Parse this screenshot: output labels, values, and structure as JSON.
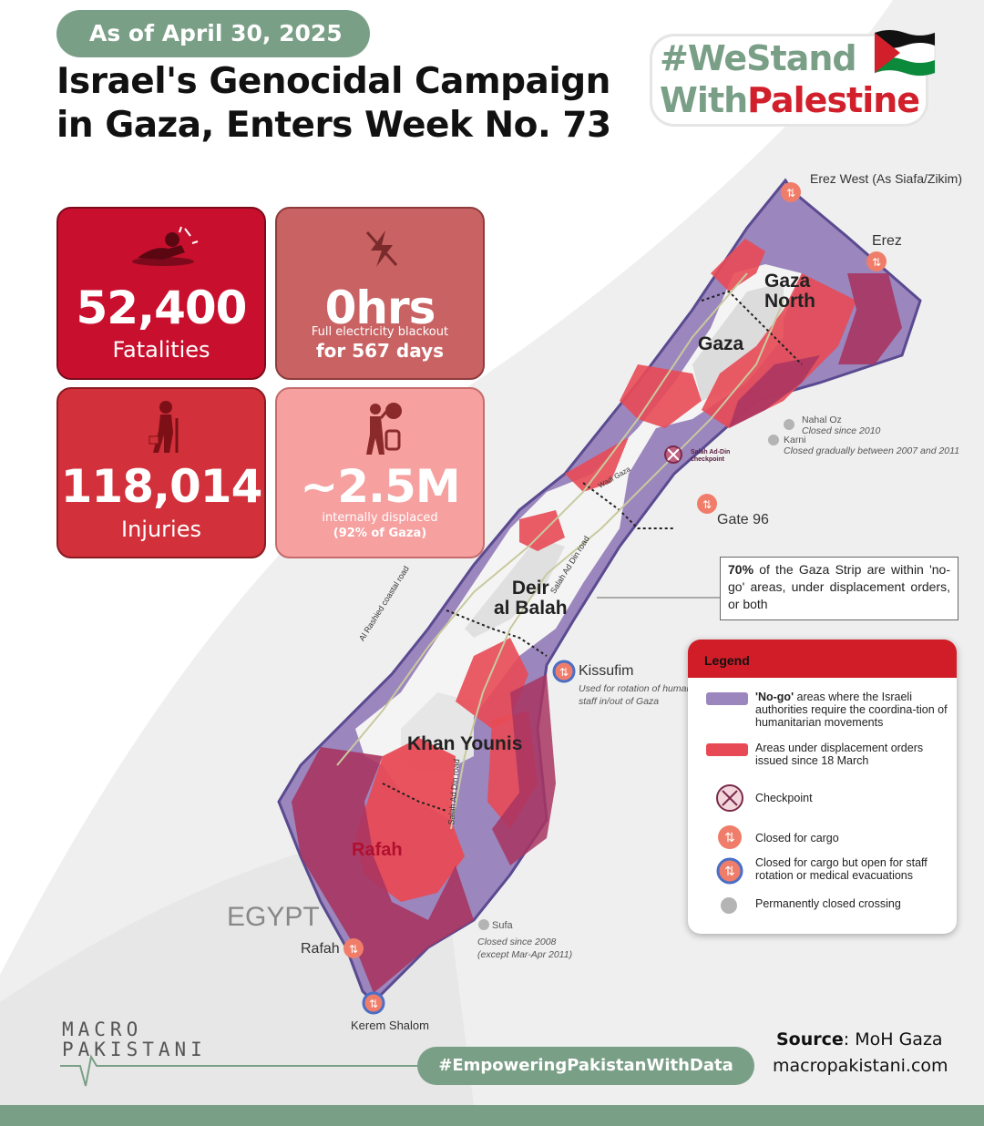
{
  "header": {
    "date_label": "As of April 30, 2025",
    "title_line1": "Israel's Genocidal Campaign",
    "title_line2": "in Gaza, Enters Week No. 73",
    "hashtag_line1": "#WeStand",
    "hashtag_line2_a": "With",
    "hashtag_line2_b": "Palestine"
  },
  "stats": {
    "fatalities": {
      "value": "52,400",
      "label": "Fatalities"
    },
    "electricity": {
      "value": "0hrs",
      "sub": "Full electricity blackout",
      "detail": "for 567 days"
    },
    "injuries": {
      "value": "118,014",
      "label": "Injuries"
    },
    "displaced": {
      "value": "~2.5M",
      "sub": "internally displaced",
      "detail": "(92% of Gaza)"
    }
  },
  "map": {
    "places": {
      "gaza_north_1": "Gaza",
      "gaza_north_2": "North",
      "gaza": "Gaza",
      "deir_1": "Deir",
      "deir_2": "al Balah",
      "khan_younis": "Khan Younis",
      "rafah": "Rafah",
      "egypt": "EGYPT"
    },
    "roads": {
      "coastal": "Al Rashied coastal road",
      "salah1": "Salah Ad Din road",
      "salah2": "Salah Ad Din road",
      "wadi": "Wadi Gaza"
    },
    "crossings": {
      "erez_west": "Erez West (As Siafa/Zikim)",
      "erez": "Erez",
      "nahal_oz": "Nahal Oz",
      "nahal_oz_note": "Closed since 2010",
      "karni": "Karni",
      "karni_note": "Closed gradually between 2007 and 2011",
      "salah_checkpoint_1": "Salah Ad-Din",
      "salah_checkpoint_2": "checkpoint",
      "gate96": "Gate 96",
      "kissufim": "Kissufim",
      "kissufim_note1": "Used for rotation of human",
      "kissufim_note2": "staff in/out of Gaza",
      "sufa": "Sufa",
      "sufa_note1": "Closed since  2008",
      "sufa_note2": "(except Mar-Apr 2011)",
      "rafah_crossing": "Rafah",
      "kerem_shalom": "Kerem Shalom"
    },
    "callout_bold": "70%",
    "callout_text": " of the Gaza Strip are within 'no-go' areas, under displacement orders, or both"
  },
  "legend": {
    "title": "Legend",
    "items": [
      {
        "bold": "'No-go'",
        "text": " areas where the Israeli authorities require the coordina-tion of humanitarian movements"
      },
      {
        "bold": "",
        "text": "Areas under displacement orders issued since 18 March"
      },
      {
        "bold": "",
        "text": "Checkpoint"
      },
      {
        "bold": "",
        "text": "Closed for cargo"
      },
      {
        "bold": "",
        "text": "Closed for cargo but open for staff rotation or medical evacuations"
      },
      {
        "bold": "",
        "text": "Permanently closed crossing"
      }
    ],
    "colors": {
      "nogo": "#9b86bd",
      "displacement": "#e84a55",
      "overlap": "#a83561",
      "crossing": "#f07d6a"
    }
  },
  "footer": {
    "source_label": "Source",
    "source_value": ": MoH Gaza",
    "site": "macropakistani.com",
    "tagline": "#EmpoweringPakistanWithData",
    "logo_line1": "MACRO",
    "logo_line2": "PAKISTANI"
  }
}
